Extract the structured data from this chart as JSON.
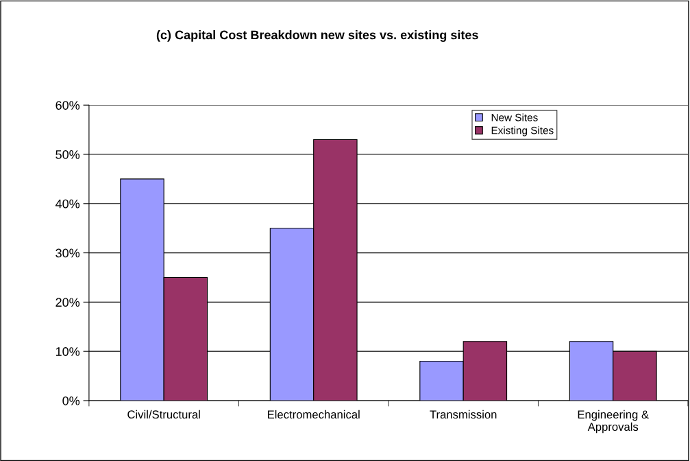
{
  "chart_data": {
    "type": "bar",
    "title": "(c) Capital Cost Breakdown new sites vs. existing sites",
    "categories": [
      "Civil/Structural",
      "Electromechanical",
      "Transmission",
      "Engineering &\nApprovals"
    ],
    "series": [
      {
        "name": "New Sites",
        "color": "#9999ff",
        "values": [
          45,
          35,
          8,
          12
        ]
      },
      {
        "name": "Existing Sites",
        "color": "#993366",
        "values": [
          25,
          53,
          12,
          10
        ]
      }
    ],
    "ylim": [
      0,
      60
    ],
    "yticks": [
      {
        "value": 0,
        "label": "0%"
      },
      {
        "value": 10,
        "label": "10%"
      },
      {
        "value": 20,
        "label": "20%"
      },
      {
        "value": 30,
        "label": "30%"
      },
      {
        "value": 40,
        "label": "40%"
      },
      {
        "value": 50,
        "label": "50%"
      },
      {
        "value": 60,
        "label": "60%"
      }
    ],
    "grid": "y",
    "legend": "top right"
  }
}
